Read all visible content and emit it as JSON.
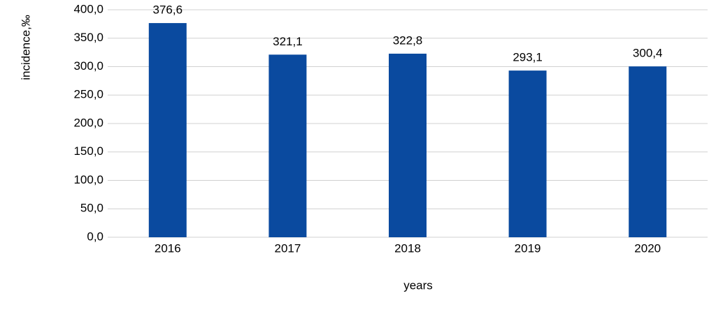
{
  "chart_data": {
    "type": "bar",
    "x_label": "years",
    "y_label": "incidence,‰",
    "categories": [
      "2016",
      "2017",
      "2018",
      "2019",
      "2020"
    ],
    "values": [
      376.6,
      321.1,
      322.8,
      293.1,
      300.4
    ],
    "value_labels": [
      "376,6",
      "321,1",
      "322,8",
      "293,1",
      "300,4"
    ],
    "color": "#0a4a9f",
    "ylim": [
      0,
      400
    ],
    "yticks": [
      {
        "value": 0,
        "label": "0,0"
      },
      {
        "value": 50,
        "label": "50,0"
      },
      {
        "value": 100,
        "label": "100,0"
      },
      {
        "value": 150,
        "label": "150,0"
      },
      {
        "value": 200,
        "label": "200,0"
      },
      {
        "value": 250,
        "label": "250,0"
      },
      {
        "value": 300,
        "label": "300,0"
      },
      {
        "value": 350,
        "label": "350,0"
      },
      {
        "value": 400,
        "label": "400,0"
      }
    ],
    "grid": true
  }
}
